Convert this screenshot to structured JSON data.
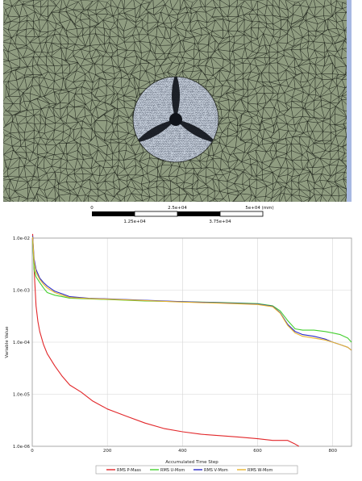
{
  "mesh": {
    "colors": {
      "fill": "#8f9c80",
      "edges": "#1b1f18",
      "hole_fill": "#c7d0dc",
      "hole_dark": "#10131a",
      "edge_strip": "#a8b9e2"
    },
    "scale_bar": {
      "top_labels": [
        "0",
        "2.5e+04",
        "5e+04 (mm)"
      ],
      "bottom_labels": [
        "1.25e+04",
        "3.75e+04"
      ]
    }
  },
  "chart_data": {
    "type": "line",
    "xlabel": "Accumulated Time Step",
    "ylabel": "Variable Value",
    "x_ticks": [
      0,
      200,
      400,
      600,
      800
    ],
    "y_ticks": [
      {
        "value": 0.01,
        "label": "1.0e-02"
      },
      {
        "value": 0.001,
        "label": "1.0e-03"
      },
      {
        "value": 0.0001,
        "label": "1.0e-04"
      },
      {
        "value": 1e-05,
        "label": "1.0e-05"
      },
      {
        "value": 1e-06,
        "label": "1.0e-06"
      }
    ],
    "xlim": [
      0,
      850
    ],
    "ylim": [
      1e-06,
      0.01
    ],
    "y_scale": "log",
    "grid": true,
    "legend_position": "bottom",
    "series": [
      {
        "name": "RMS P-Mass",
        "color": "#e2272a",
        "x": [
          1,
          5,
          10,
          15,
          20,
          30,
          40,
          60,
          80,
          100,
          130,
          160,
          200,
          250,
          300,
          350,
          400,
          450,
          500,
          550,
          600,
          640,
          660,
          680,
          700,
          710
        ],
        "y": [
          0.012,
          0.0025,
          0.0005,
          0.00025,
          0.00016,
          9e-05,
          6e-05,
          3.5e-05,
          2.2e-05,
          1.5e-05,
          1.1e-05,
          7.5e-06,
          5.2e-06,
          3.8e-06,
          2.8e-06,
          2.2e-06,
          1.9e-06,
          1.7e-06,
          1.6e-06,
          1.5e-06,
          1.4e-06,
          1.3e-06,
          1.3e-06,
          1.3e-06,
          1.1e-06,
          1e-06
        ]
      },
      {
        "name": "RMS U-Mom",
        "color": "#44cf2f",
        "x": [
          1,
          5,
          10,
          20,
          30,
          40,
          60,
          80,
          100,
          150,
          200,
          300,
          400,
          500,
          600,
          640,
          660,
          680,
          700,
          720,
          750,
          780,
          800,
          820,
          840,
          850
        ],
        "y": [
          0.009,
          0.0025,
          0.0018,
          0.0014,
          0.0011,
          0.0009,
          0.0008,
          0.00075,
          0.0007,
          0.00068,
          0.00066,
          0.00062,
          0.0006,
          0.00058,
          0.00055,
          0.0005,
          0.0004,
          0.00026,
          0.00018,
          0.00017,
          0.00017,
          0.00016,
          0.00015,
          0.00014,
          0.00012,
          0.0001
        ]
      },
      {
        "name": "RMS V-Mom",
        "color": "#2a2bc7",
        "x": [
          1,
          5,
          10,
          20,
          30,
          40,
          60,
          80,
          100,
          150,
          200,
          300,
          400,
          500,
          600,
          640,
          660,
          680,
          700,
          720,
          750,
          780,
          800,
          820,
          840,
          850
        ],
        "y": [
          0.011,
          0.004,
          0.0025,
          0.0017,
          0.0014,
          0.0012,
          0.00095,
          0.00085,
          0.00075,
          0.0007,
          0.00068,
          0.00064,
          0.0006,
          0.00057,
          0.00054,
          0.00049,
          0.00037,
          0.00022,
          0.00016,
          0.00014,
          0.00013,
          0.000115,
          0.0001,
          9e-05,
          8e-05,
          7e-05
        ]
      },
      {
        "name": "RMS W-Mom",
        "color": "#e8b530",
        "x": [
          1,
          5,
          10,
          20,
          30,
          40,
          60,
          80,
          100,
          150,
          200,
          300,
          400,
          500,
          600,
          640,
          660,
          680,
          700,
          720,
          750,
          780,
          800,
          820,
          840,
          850
        ],
        "y": [
          0.0105,
          0.0035,
          0.0022,
          0.0016,
          0.0013,
          0.0011,
          0.0009,
          0.0008,
          0.00072,
          0.00069,
          0.00067,
          0.00063,
          0.00059,
          0.00056,
          0.00053,
          0.00048,
          0.00036,
          0.00021,
          0.00015,
          0.00013,
          0.00012,
          0.00011,
          0.0001,
          9e-05,
          8e-05,
          7e-05
        ]
      }
    ]
  }
}
